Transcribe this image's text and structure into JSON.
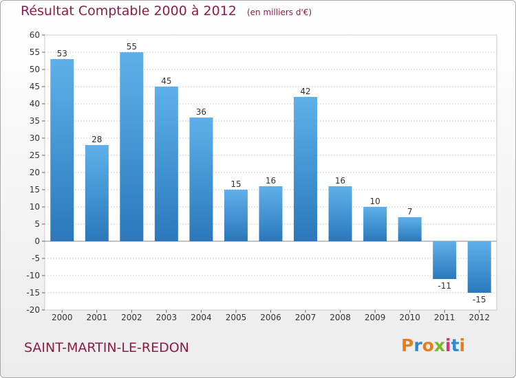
{
  "title": "Résultat Comptable 2000 à 2012",
  "unit": "(en milliers d'€)",
  "commune": "SAINT-MARTIN-LE-REDON",
  "logo": {
    "text": "Proxiti",
    "letters": [
      "P",
      "r",
      "o",
      "x",
      "i",
      "t",
      "i"
    ],
    "colors": [
      "#e87d1e",
      "#2e8bd0",
      "#e87d1e",
      "#7ab62f",
      "#d6337b",
      "#2e8bd0",
      "#e87d1e"
    ]
  },
  "colors": {
    "bar_light": "#5fb0ea",
    "bar_dark": "#2a78bb",
    "title": "#8b1e47",
    "grid": "#d0d0d0"
  },
  "chart_data": {
    "type": "bar",
    "categories": [
      "2000",
      "2001",
      "2002",
      "2003",
      "2004",
      "2005",
      "2006",
      "2007",
      "2008",
      "2009",
      "2010",
      "2011",
      "2012"
    ],
    "values": [
      53,
      28,
      55,
      45,
      36,
      15,
      16,
      42,
      16,
      10,
      7,
      -11,
      -15
    ],
    "data_labels": [
      "53",
      "28",
      "55",
      "45",
      "36",
      "15",
      "16",
      "42",
      "16",
      "10",
      "7",
      "-11",
      "-15"
    ],
    "yticks": [
      "60",
      "55",
      "50",
      "45",
      "40",
      "35",
      "30",
      "25",
      "20",
      "15",
      "10",
      "5",
      "0",
      "-5",
      "-10",
      "-15",
      "-20"
    ],
    "ylim": [
      -20,
      60
    ],
    "grid": true
  }
}
